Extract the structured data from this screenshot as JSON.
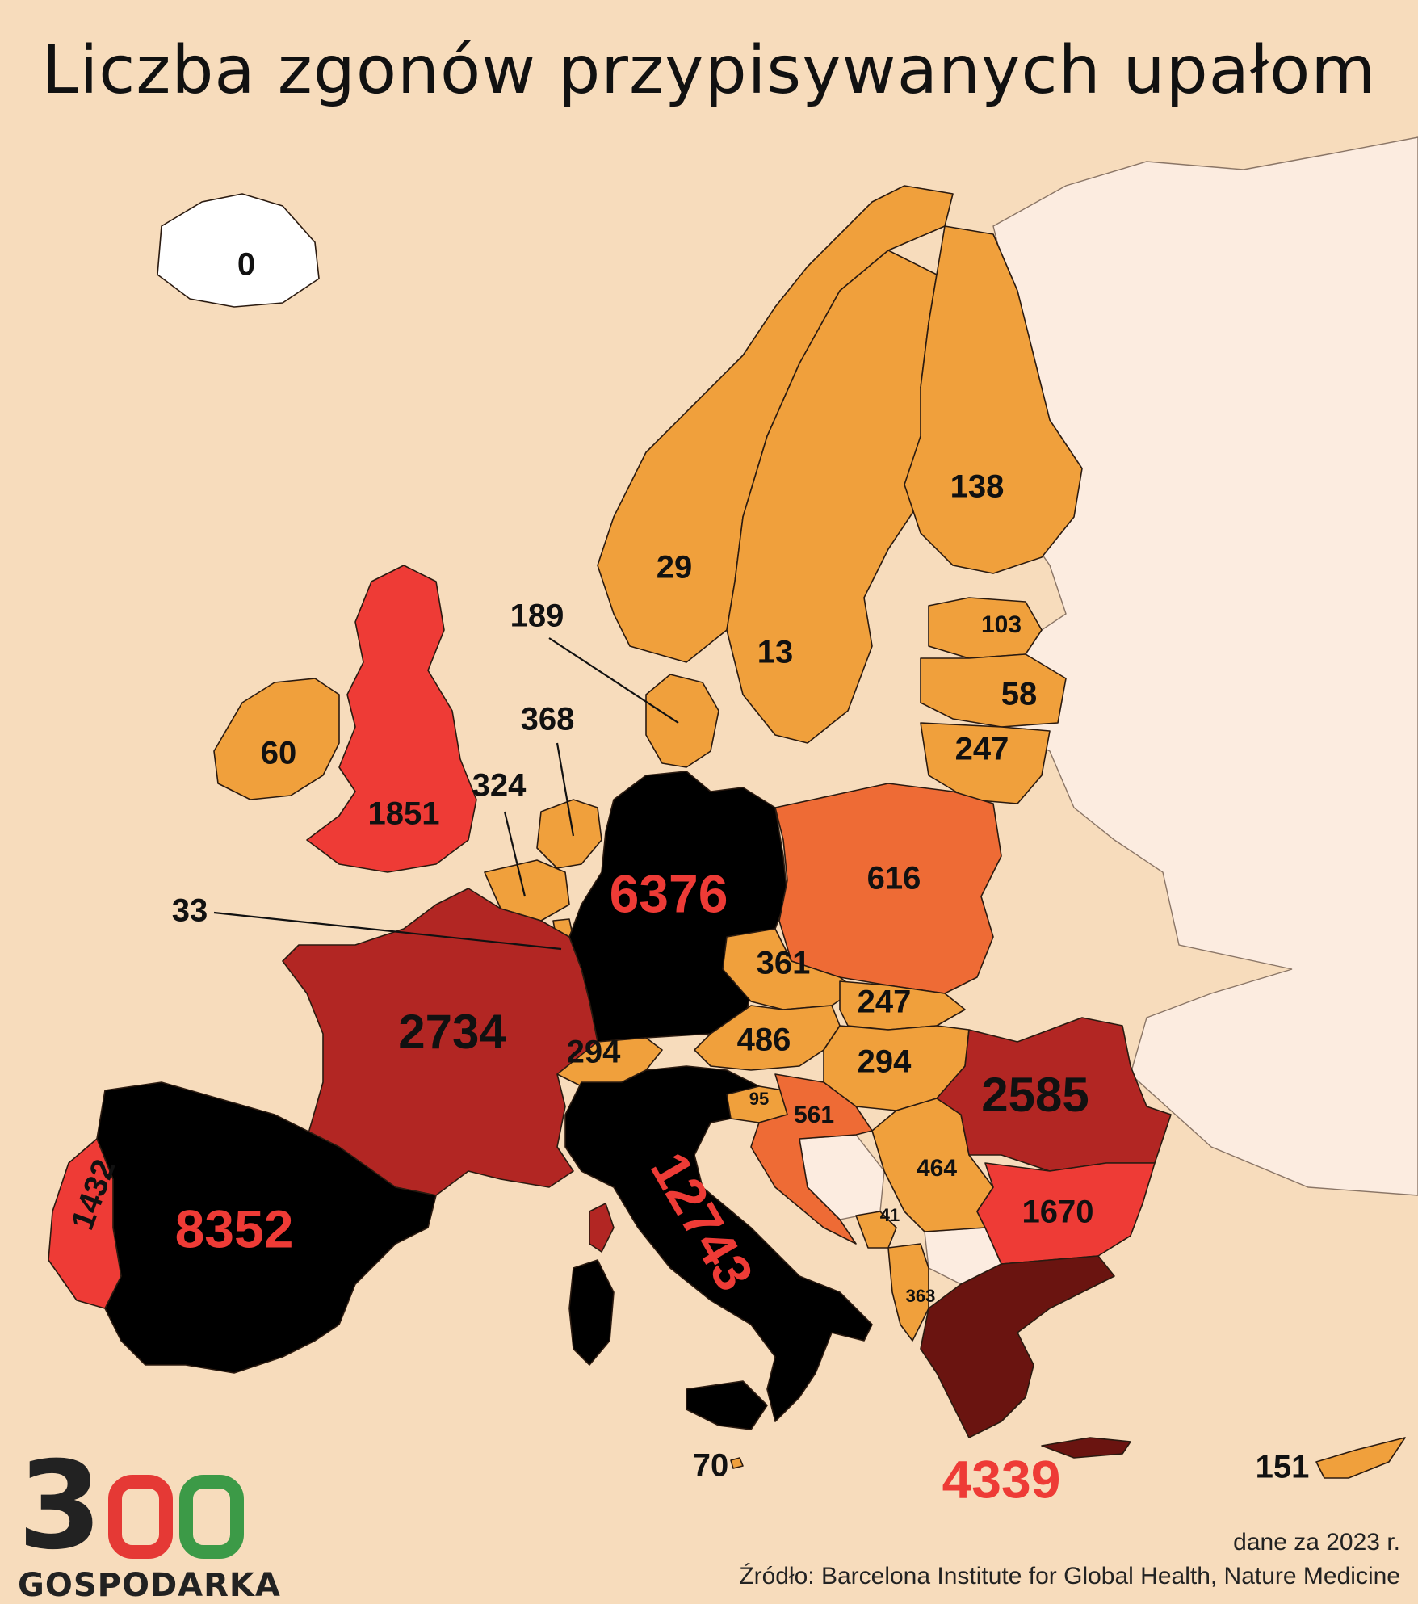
{
  "title": "Liczba zgonów przypisywanych upałom",
  "colors": {
    "background": "#f7dcbc",
    "non_data_land": "#fcece0",
    "bin_very_low": "#ffffff",
    "bin_low": "#f0a03c",
    "bin_mid": "#ee6b35",
    "bin_high": "#ee3b36",
    "bin_very_high": "#b22623",
    "bin_greece": "#6a1410",
    "bin_extreme": "#000000",
    "label_highlight": "#ee3b36"
  },
  "countries": [
    {
      "name": "iceland",
      "value": "0",
      "color": "#ffffff"
    },
    {
      "name": "norway",
      "value": "29",
      "color": "#f0a03c"
    },
    {
      "name": "sweden",
      "value": "13",
      "color": "#f0a03c"
    },
    {
      "name": "finland",
      "value": "138",
      "color": "#f0a03c"
    },
    {
      "name": "estonia",
      "value": "103",
      "color": "#f0a03c"
    },
    {
      "name": "latvia",
      "value": "58",
      "color": "#f0a03c"
    },
    {
      "name": "lithuania",
      "value": "247",
      "color": "#f0a03c"
    },
    {
      "name": "denmark",
      "value": "189",
      "color": "#f0a03c"
    },
    {
      "name": "ireland",
      "value": "60",
      "color": "#f0a03c"
    },
    {
      "name": "united-kingdom",
      "value": "1851",
      "color": "#ee3b36"
    },
    {
      "name": "netherlands",
      "value": "368",
      "color": "#f0a03c"
    },
    {
      "name": "belgium",
      "value": "324",
      "color": "#f0a03c"
    },
    {
      "name": "luxembourg",
      "value": "33",
      "color": "#f0a03c"
    },
    {
      "name": "germany",
      "value": "6376",
      "color": "#000000"
    },
    {
      "name": "poland",
      "value": "616",
      "color": "#ee6b35"
    },
    {
      "name": "czechia",
      "value": "361",
      "color": "#f0a03c"
    },
    {
      "name": "slovakia",
      "value": "247",
      "color": "#f0a03c"
    },
    {
      "name": "austria",
      "value": "486",
      "color": "#f0a03c"
    },
    {
      "name": "hungary",
      "value": "294",
      "color": "#f0a03c"
    },
    {
      "name": "switzerland",
      "value": "294",
      "color": "#f0a03c"
    },
    {
      "name": "france",
      "value": "2734",
      "color": "#b22623"
    },
    {
      "name": "spain",
      "value": "8352",
      "color": "#000000"
    },
    {
      "name": "portugal",
      "value": "1432",
      "color": "#ee3b36"
    },
    {
      "name": "italy",
      "value": "12743",
      "color": "#000000"
    },
    {
      "name": "slovenia",
      "value": "95",
      "color": "#f0a03c"
    },
    {
      "name": "croatia",
      "value": "561",
      "color": "#ee6b35"
    },
    {
      "name": "serbia",
      "value": "464",
      "color": "#f0a03c"
    },
    {
      "name": "montenegro",
      "value": "41",
      "color": "#f0a03c"
    },
    {
      "name": "albania",
      "value": "363",
      "color": "#f0a03c"
    },
    {
      "name": "romania",
      "value": "2585",
      "color": "#b22623"
    },
    {
      "name": "bulgaria",
      "value": "1670",
      "color": "#ee3b36"
    },
    {
      "name": "greece",
      "value": "4339",
      "color": "#6a1410"
    },
    {
      "name": "malta",
      "value": "70",
      "color": "#f0a03c"
    },
    {
      "name": "cyprus",
      "value": "151",
      "color": "#f0a03c"
    }
  ],
  "logo": {
    "digit": "3",
    "word": "GOSPODARKA",
    "colors": [
      "#222222",
      "#e53935",
      "#3c9a47"
    ]
  },
  "footer": {
    "note": "dane za 2023 r.",
    "source": "Źródło: Barcelona Institute for Global Health, Nature Medicine"
  }
}
